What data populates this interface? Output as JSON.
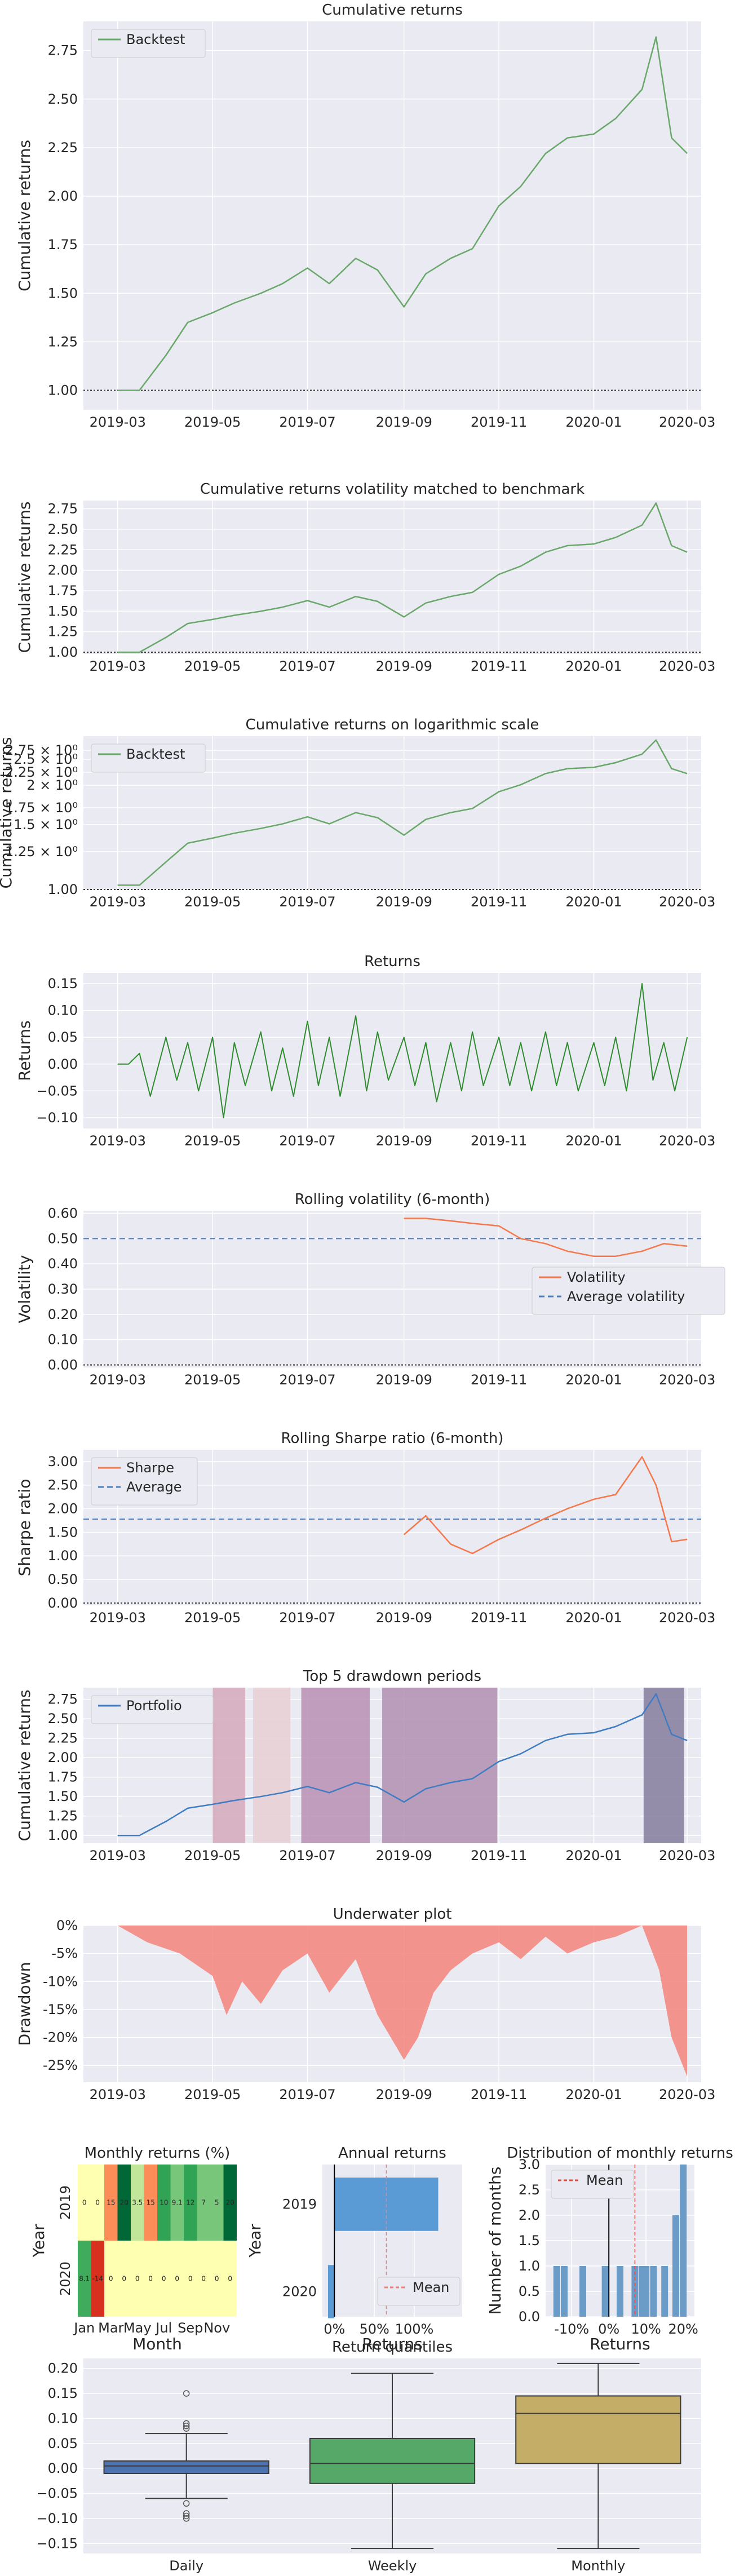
{
  "colors": {
    "backtest": "#6aa76a",
    "returns": "#2e8b2e",
    "volatility": "#f5774b",
    "sharpe": "#f5774b",
    "average": "#4d7fba",
    "portfolio": "#3f7cc2",
    "underwater": "#f3847b",
    "axes_bg": "#eaeaf2",
    "grid": "#ffffff",
    "drawdown_shades": [
      "#d4a9bb",
      "#e6cfd3",
      "#b98fb4",
      "#b08fb2",
      "#857c9e"
    ]
  },
  "date_ticks": [
    "2019-03",
    "2019-05",
    "2019-07",
    "2019-09",
    "2019-11",
    "2020-01",
    "2020-03"
  ],
  "chart_data": [
    {
      "id": "cum",
      "type": "line",
      "title": "Cumulative returns",
      "ylabel": "Cumulative returns",
      "xlabel": "",
      "grid": true,
      "legend_position": "top-left",
      "ylim": [
        0.9,
        2.9
      ],
      "yticks": [
        "1.00",
        "1.25",
        "1.50",
        "1.75",
        "2.00",
        "2.25",
        "2.50",
        "2.75"
      ],
      "series": [
        {
          "name": "Backtest",
          "x": [
            "2019-03-01",
            "2019-03-15",
            "2019-04-01",
            "2019-04-15",
            "2019-05-01",
            "2019-05-15",
            "2019-06-01",
            "2019-06-15",
            "2019-07-01",
            "2019-07-15",
            "2019-08-01",
            "2019-08-15",
            "2019-09-01",
            "2019-09-15",
            "2019-10-01",
            "2019-10-15",
            "2019-11-01",
            "2019-11-15",
            "2019-12-01",
            "2019-12-15",
            "2020-01-01",
            "2020-01-15",
            "2020-02-01",
            "2020-02-10",
            "2020-02-20",
            "2020-03-01"
          ],
          "y": [
            1.0,
            1.0,
            1.18,
            1.35,
            1.4,
            1.45,
            1.5,
            1.55,
            1.63,
            1.55,
            1.68,
            1.62,
            1.43,
            1.6,
            1.68,
            1.73,
            1.95,
            2.05,
            2.22,
            2.3,
            2.32,
            2.4,
            2.55,
            2.82,
            2.3,
            2.22
          ]
        }
      ]
    },
    {
      "id": "cumvol",
      "type": "line",
      "title": "Cumulative returns volatility matched to benchmark",
      "ylabel": "Cumulative returns",
      "xlabel": "",
      "grid": true,
      "ylim": [
        0.98,
        2.85
      ],
      "yticks": [
        "1.00",
        "1.25",
        "1.50",
        "1.75",
        "2.00",
        "2.25",
        "2.50",
        "2.75"
      ],
      "series": [
        {
          "x": [
            "2019-03-01",
            "2019-03-15",
            "2019-04-01",
            "2019-04-15",
            "2019-05-01",
            "2019-05-15",
            "2019-06-01",
            "2019-06-15",
            "2019-07-01",
            "2019-07-15",
            "2019-08-01",
            "2019-08-15",
            "2019-09-01",
            "2019-09-15",
            "2019-10-01",
            "2019-10-15",
            "2019-11-01",
            "2019-11-15",
            "2019-12-01",
            "2019-12-15",
            "2020-01-01",
            "2020-01-15",
            "2020-02-01",
            "2020-02-10",
            "2020-02-20",
            "2020-03-01"
          ],
          "y": [
            1.0,
            1.0,
            1.18,
            1.35,
            1.4,
            1.45,
            1.5,
            1.55,
            1.63,
            1.55,
            1.68,
            1.62,
            1.43,
            1.6,
            1.68,
            1.73,
            1.95,
            2.05,
            2.22,
            2.3,
            2.32,
            2.4,
            2.55,
            2.82,
            2.3,
            2.22
          ]
        }
      ]
    },
    {
      "id": "cumlog",
      "type": "line",
      "title": "Cumulative returns on logarithmic scale",
      "ylabel": "Cumulative returns",
      "xlabel": "",
      "grid": true,
      "log_scale": true,
      "legend_position": "top-left",
      "ylim": [
        0.97,
        2.9
      ],
      "yticks": [
        "1.00",
        "1.25 × 10⁰",
        "1.5 × 10⁰",
        "1.75 × 10⁰",
        "2 × 10⁰",
        "2.25 × 10⁰",
        "2.5 × 10⁰",
        "2.75 × 10⁰"
      ],
      "series": [
        {
          "name": "Backtest",
          "x": [
            "2019-03-01",
            "2019-03-15",
            "2019-04-01",
            "2019-04-15",
            "2019-05-01",
            "2019-05-15",
            "2019-06-01",
            "2019-06-15",
            "2019-07-01",
            "2019-07-15",
            "2019-08-01",
            "2019-08-15",
            "2019-09-01",
            "2019-09-15",
            "2019-10-01",
            "2019-10-15",
            "2019-11-01",
            "2019-11-15",
            "2019-12-01",
            "2019-12-15",
            "2020-01-01",
            "2020-01-15",
            "2020-02-01",
            "2020-02-10",
            "2020-02-20",
            "2020-03-01"
          ],
          "y": [
            1.0,
            1.0,
            1.18,
            1.35,
            1.4,
            1.45,
            1.5,
            1.55,
            1.63,
            1.55,
            1.68,
            1.62,
            1.43,
            1.6,
            1.68,
            1.73,
            1.95,
            2.05,
            2.22,
            2.3,
            2.32,
            2.4,
            2.55,
            2.82,
            2.3,
            2.22
          ]
        }
      ]
    },
    {
      "id": "ret",
      "type": "line",
      "title": "Returns",
      "ylabel": "Returns",
      "xlabel": "",
      "grid": true,
      "ylim": [
        -0.12,
        0.17
      ],
      "yticks": [
        "−0.10",
        "−0.05",
        "0.00",
        "0.05",
        "0.10",
        "0.15"
      ],
      "series": [
        {
          "x": [
            "2019-03-01",
            "2019-03-08",
            "2019-03-15",
            "2019-03-22",
            "2019-04-01",
            "2019-04-08",
            "2019-04-15",
            "2019-04-22",
            "2019-05-01",
            "2019-05-08",
            "2019-05-15",
            "2019-05-22",
            "2019-06-01",
            "2019-06-08",
            "2019-06-15",
            "2019-06-22",
            "2019-07-01",
            "2019-07-08",
            "2019-07-15",
            "2019-07-22",
            "2019-08-01",
            "2019-08-08",
            "2019-08-15",
            "2019-08-22",
            "2019-09-01",
            "2019-09-08",
            "2019-09-15",
            "2019-09-22",
            "2019-10-01",
            "2019-10-08",
            "2019-10-15",
            "2019-10-22",
            "2019-11-01",
            "2019-11-08",
            "2019-11-15",
            "2019-11-22",
            "2019-12-01",
            "2019-12-08",
            "2019-12-15",
            "2019-12-22",
            "2020-01-01",
            "2020-01-08",
            "2020-01-15",
            "2020-01-22",
            "2020-02-01",
            "2020-02-08",
            "2020-02-15",
            "2020-02-22",
            "2020-03-01"
          ],
          "y": [
            0.0,
            0.0,
            0.02,
            -0.06,
            0.05,
            -0.03,
            0.04,
            -0.05,
            0.05,
            -0.1,
            0.04,
            -0.04,
            0.06,
            -0.05,
            0.03,
            -0.06,
            0.08,
            -0.04,
            0.05,
            -0.06,
            0.09,
            -0.05,
            0.06,
            -0.03,
            0.05,
            -0.04,
            0.04,
            -0.07,
            0.04,
            -0.05,
            0.06,
            -0.04,
            0.05,
            -0.04,
            0.04,
            -0.05,
            0.06,
            -0.04,
            0.04,
            -0.05,
            0.04,
            -0.04,
            0.05,
            -0.05,
            0.15,
            -0.03,
            0.04,
            -0.05,
            0.05
          ]
        }
      ]
    },
    {
      "id": "vol",
      "type": "line",
      "title": "Rolling volatility (6-month)",
      "ylabel": "Volatility",
      "xlabel": "",
      "grid": true,
      "legend_position": "center-right",
      "ylim": [
        -0.01,
        0.61
      ],
      "yticks": [
        "0.00",
        "0.10",
        "0.20",
        "0.30",
        "0.40",
        "0.50",
        "0.60"
      ],
      "average": 0.5,
      "zero_line": true,
      "series": [
        {
          "name": "Volatility",
          "x": [
            "2019-09-01",
            "2019-09-15",
            "2019-10-01",
            "2019-10-15",
            "2019-11-01",
            "2019-11-15",
            "2019-12-01",
            "2019-12-15",
            "2020-01-01",
            "2020-01-15",
            "2020-02-01",
            "2020-02-15",
            "2020-03-01"
          ],
          "y": [
            0.58,
            0.58,
            0.57,
            0.56,
            0.55,
            0.5,
            0.48,
            0.45,
            0.43,
            0.43,
            0.45,
            0.48,
            0.47
          ]
        },
        {
          "name": "Average volatility"
        }
      ]
    },
    {
      "id": "sharpe",
      "type": "line",
      "title": "Rolling Sharpe ratio (6-month)",
      "ylabel": "Sharpe ratio",
      "xlabel": "",
      "grid": true,
      "legend_position": "top-left",
      "ylim": [
        -0.05,
        3.25
      ],
      "yticks": [
        "0.00",
        "0.50",
        "1.00",
        "1.50",
        "2.00",
        "2.50",
        "3.00"
      ],
      "average": 1.78,
      "zero_line": true,
      "series": [
        {
          "name": "Sharpe",
          "x": [
            "2019-09-01",
            "2019-09-15",
            "2019-10-01",
            "2019-10-15",
            "2019-11-01",
            "2019-11-15",
            "2019-12-01",
            "2019-12-15",
            "2020-01-01",
            "2020-01-15",
            "2020-02-01",
            "2020-02-10",
            "2020-02-20",
            "2020-03-01"
          ],
          "y": [
            1.45,
            1.85,
            1.25,
            1.05,
            1.35,
            1.55,
            1.8,
            2.0,
            2.2,
            2.3,
            3.1,
            2.5,
            1.3,
            1.35
          ]
        },
        {
          "name": "Average"
        }
      ]
    },
    {
      "id": "dd",
      "type": "line",
      "title": "Top 5 drawdown periods",
      "ylabel": "Cumulative returns",
      "xlabel": "",
      "grid": true,
      "legend_position": "top-left",
      "ylim": [
        0.9,
        2.9
      ],
      "yticks": [
        "1.00",
        "1.25",
        "1.50",
        "1.75",
        "2.00",
        "2.25",
        "2.50",
        "2.75"
      ],
      "drawdown_periods": [
        [
          "2019-05-01",
          "2019-05-22"
        ],
        [
          "2019-05-27",
          "2019-06-20"
        ],
        [
          "2019-06-27",
          "2019-08-10"
        ],
        [
          "2019-08-18",
          "2019-10-31"
        ],
        [
          "2020-02-02",
          "2020-02-28"
        ]
      ],
      "series": [
        {
          "name": "Portfolio",
          "x": [
            "2019-03-01",
            "2019-03-15",
            "2019-04-01",
            "2019-04-15",
            "2019-05-01",
            "2019-05-15",
            "2019-06-01",
            "2019-06-15",
            "2019-07-01",
            "2019-07-15",
            "2019-08-01",
            "2019-08-15",
            "2019-09-01",
            "2019-09-15",
            "2019-10-01",
            "2019-10-15",
            "2019-11-01",
            "2019-11-15",
            "2019-12-01",
            "2019-12-15",
            "2020-01-01",
            "2020-01-15",
            "2020-02-01",
            "2020-02-10",
            "2020-02-20",
            "2020-03-01"
          ],
          "y": [
            1.0,
            1.0,
            1.18,
            1.35,
            1.4,
            1.45,
            1.5,
            1.55,
            1.63,
            1.55,
            1.68,
            1.62,
            1.43,
            1.6,
            1.68,
            1.73,
            1.95,
            2.05,
            2.22,
            2.3,
            2.32,
            2.4,
            2.55,
            2.82,
            2.3,
            2.22
          ]
        }
      ]
    },
    {
      "id": "uw",
      "type": "area",
      "title": "Underwater plot",
      "ylabel": "Drawdown",
      "xlabel": "",
      "grid": true,
      "ylim": [
        -28,
        0
      ],
      "yticks": [
        "0%",
        "-5%",
        "-10%",
        "-15%",
        "-20%",
        "-25%"
      ],
      "series": [
        {
          "x": [
            "2019-03-01",
            "2019-03-20",
            "2019-04-10",
            "2019-05-01",
            "2019-05-10",
            "2019-05-20",
            "2019-06-01",
            "2019-06-15",
            "2019-07-01",
            "2019-07-15",
            "2019-08-01",
            "2019-08-15",
            "2019-09-01",
            "2019-09-10",
            "2019-09-20",
            "2019-10-01",
            "2019-10-15",
            "2019-11-01",
            "2019-11-15",
            "2019-12-01",
            "2019-12-15",
            "2020-01-01",
            "2020-01-15",
            "2020-02-01",
            "2020-02-12",
            "2020-02-20",
            "2020-03-01"
          ],
          "y": [
            0,
            -3,
            -5,
            -9,
            -16,
            -10,
            -14,
            -8,
            -5,
            -12,
            -6,
            -16,
            -24,
            -20,
            -12,
            -8,
            -5,
            -3,
            -6,
            -2,
            -5,
            -3,
            -2,
            0,
            -8,
            -20,
            -27
          ]
        }
      ]
    },
    {
      "id": "heatmap",
      "type": "heatmap",
      "title": "Monthly returns (%)",
      "xlabel": "Month",
      "ylabel": "Year",
      "x_ticks": [
        "Jan",
        "Mar",
        "May",
        "Jul",
        "Sep",
        "Nov"
      ],
      "rows": [
        "2019",
        "2020"
      ],
      "values": [
        [
          0.0,
          0.0,
          15.0,
          20.0,
          3.5,
          15.0,
          10.0,
          9.1,
          12.0,
          7.0,
          5.0,
          20.0
        ],
        [
          8.1,
          -14.0,
          0.0,
          0.0,
          0.0,
          0.0,
          0.0,
          0.0,
          0.0,
          0.0,
          0.0,
          0.0
        ]
      ],
      "labels": [
        [
          "0",
          "0",
          "15",
          "20",
          "3.5",
          "15",
          "10",
          "9.1",
          "12",
          "7",
          "5",
          "20"
        ],
        [
          "8.1",
          "-14",
          "0",
          "0",
          "0",
          "0",
          "0",
          "0",
          "0",
          "0",
          "0",
          "0"
        ]
      ]
    },
    {
      "id": "annual",
      "type": "bar",
      "title": "Annual returns",
      "xlabel": "Returns",
      "ylabel": "Year",
      "legend_position": "bottom-right",
      "categories": [
        "2019",
        "2020"
      ],
      "values": [
        130,
        -8
      ],
      "mean": 65,
      "xticks": [
        "0%",
        "50%",
        "100%"
      ],
      "series_names": [
        "Mean"
      ]
    },
    {
      "id": "dist",
      "type": "bar",
      "title": "Distribution of monthly returns",
      "xlabel": "Returns",
      "ylabel": "Number of months",
      "legend_position": "top-left",
      "ylim": [
        0,
        3.0
      ],
      "yticks": [
        "0.0",
        "0.5",
        "1.0",
        "1.5",
        "2.0",
        "2.5",
        "3.0"
      ],
      "xticks": [
        "-10%",
        "0%",
        "10%",
        "20%"
      ],
      "bins": [
        -14,
        -12,
        -7,
        -1,
        3,
        7,
        9,
        10,
        12,
        15,
        18,
        20
      ],
      "values": [
        1,
        1,
        1,
        1,
        1,
        1,
        1,
        1,
        1,
        1,
        2,
        3
      ],
      "mean": 7,
      "series_names": [
        "Mean"
      ]
    },
    {
      "id": "quantiles",
      "type": "box",
      "title": "Return quantiles",
      "categories": [
        "Daily",
        "Weekly",
        "Monthly"
      ],
      "yticks": [
        "−0.15",
        "−0.10",
        "−0.05",
        "0.00",
        "0.05",
        "0.10",
        "0.15",
        "0.20"
      ],
      "ylim": [
        -0.17,
        0.22
      ],
      "boxes": [
        {
          "whisker_low": -0.06,
          "q1": -0.01,
          "median": 0.005,
          "q3": 0.015,
          "whisker_high": 0.07,
          "outliers": [
            0.15,
            0.09,
            0.085,
            0.08,
            -0.07,
            -0.09,
            -0.095,
            -0.1
          ]
        },
        {
          "whisker_low": -0.16,
          "q1": -0.03,
          "median": 0.01,
          "q3": 0.06,
          "whisker_high": 0.19
        },
        {
          "whisker_low": -0.16,
          "q1": 0.01,
          "median": 0.11,
          "q3": 0.145,
          "whisker_high": 0.21
        }
      ]
    }
  ]
}
